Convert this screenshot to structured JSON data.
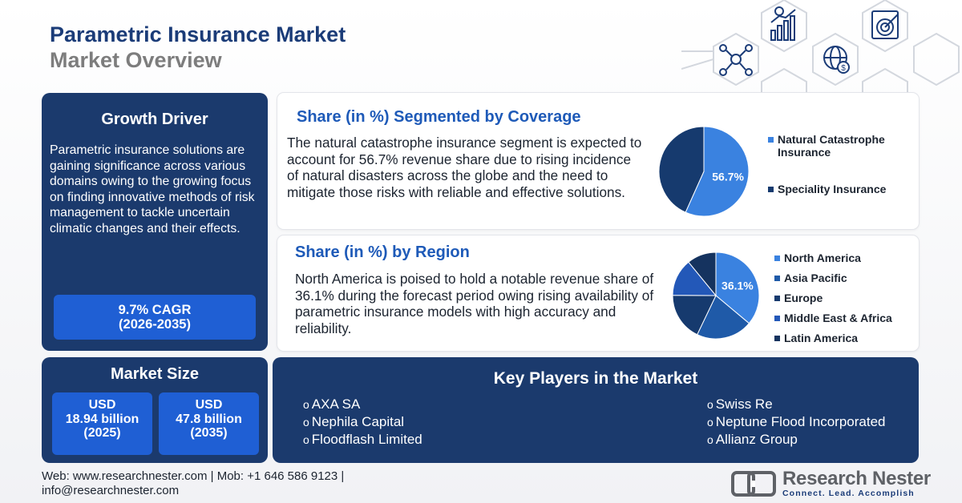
{
  "header": {
    "title": "Parametric Insurance Market",
    "subtitle": "Market Overview"
  },
  "decoration_icons": [
    "people-network-icon",
    "growth-chart-icon",
    "target-icon",
    "globe-dollar-icon"
  ],
  "growth_driver": {
    "heading": "Growth Driver",
    "text": "Parametric insurance solutions are gaining significance across various domains owing to the growing focus on finding innovative methods of risk management to tackle uncertain climatic changes and their effects.",
    "cagr_line1": "9.7% CAGR",
    "cagr_line2": "(2026-2035)"
  },
  "market_size": {
    "heading": "Market Size",
    "boxes": [
      {
        "line1": "USD",
        "line2": "18.94 billion",
        "line3": "(2025)"
      },
      {
        "line1": "USD",
        "line2": "47.8 billion",
        "line3": "(2035)"
      }
    ]
  },
  "coverage": {
    "heading": "Share (in %) Segmented by Coverage",
    "text": "The natural catastrophe insurance segment is expected to account for 56.7% revenue share due to rising incidence of natural disasters across the globe and the need to mitigate those risks with reliable and effective solutions.",
    "pie_label": "56.7%",
    "legend": [
      {
        "line1": "Natural Catastrophe",
        "line2": "Insurance",
        "color": "#3a82e0"
      },
      {
        "line1": "Speciality Insurance",
        "line2": "",
        "color": "#163a6e"
      }
    ]
  },
  "region": {
    "heading": "Share (in %) by Region",
    "text": "North America is poised to hold a notable revenue share of 36.1% during the forecast period owing rising availability of parametric insurance models with high accuracy and reliability.",
    "pie_label": "36.1%",
    "legend": [
      {
        "label": "North America",
        "color": "#3a82e0"
      },
      {
        "label": "Asia Pacific",
        "color": "#1f5aa8"
      },
      {
        "label": "Europe",
        "color": "#163a6e"
      },
      {
        "label": "Middle East & Africa",
        "color": "#2358b8"
      },
      {
        "label": "Latin America",
        "color": "#15335f"
      }
    ]
  },
  "chart_data": [
    {
      "type": "pie",
      "title": "Share (in %) Segmented by Coverage",
      "categories": [
        "Natural Catastrophe Insurance",
        "Speciality Insurance"
      ],
      "values": [
        56.7,
        43.3
      ],
      "colors": [
        "#3a82e0",
        "#163a6e"
      ]
    },
    {
      "type": "pie",
      "title": "Share (in %) by Region",
      "categories": [
        "North America",
        "Asia Pacific",
        "Europe",
        "Middle East & Africa",
        "Latin America"
      ],
      "values": [
        36.1,
        21,
        18,
        14,
        10.9
      ],
      "colors": [
        "#3a82e0",
        "#1f5aa8",
        "#163a6e",
        "#2358b8",
        "#15335f"
      ]
    }
  ],
  "key_players": {
    "heading": "Key Players in the Market",
    "left": [
      "AXA SA",
      "Nephila Capital",
      "Floodflash Limited"
    ],
    "right": [
      "Swiss Re",
      "Neptune Flood Incorporated",
      "Allianz Group"
    ]
  },
  "footer": {
    "line1": "Web: www.researchnester.com | Mob: +1 646 586 9123 |",
    "line2": "info@researchnester.com"
  },
  "logo": {
    "name": "Research Nester",
    "tagline": "Connect. Lead. Accomplish"
  }
}
